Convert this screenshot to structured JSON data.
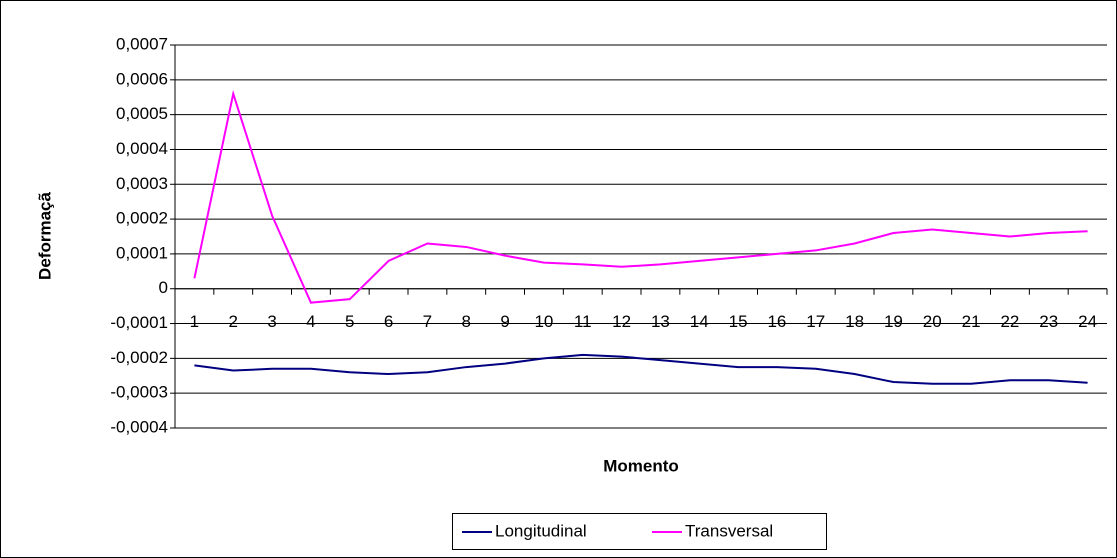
{
  "chart_data": {
    "type": "line",
    "x_label": "Momento",
    "y_label": "Deformaçã",
    "categories": [
      "1",
      "2",
      "3",
      "4",
      "5",
      "6",
      "7",
      "8",
      "9",
      "10",
      "11",
      "12",
      "13",
      "14",
      "15",
      "16",
      "17",
      "18",
      "19",
      "20",
      "21",
      "22",
      "23",
      "24"
    ],
    "series": [
      {
        "name": "Longitudinal",
        "color": "#000080",
        "values": [
          -0.00022,
          -0.000235,
          -0.00023,
          -0.00023,
          -0.00024,
          -0.000245,
          -0.00024,
          -0.000225,
          -0.000215,
          -0.0002,
          -0.00019,
          -0.000195,
          -0.000205,
          -0.000215,
          -0.000225,
          -0.000225,
          -0.00023,
          -0.000245,
          -0.000268,
          -0.000273,
          -0.000273,
          -0.000263,
          -0.000263,
          -0.00027
        ]
      },
      {
        "name": "Transversal",
        "color": "#ff00ff",
        "values": [
          3e-05,
          0.00056,
          0.00021,
          -4e-05,
          -3e-05,
          8e-05,
          0.00013,
          0.00012,
          9.5e-05,
          7.5e-05,
          7e-05,
          6.3e-05,
          7e-05,
          8e-05,
          9e-05,
          0.0001,
          0.00011,
          0.00013,
          0.00016,
          0.00017,
          0.00016,
          0.00015,
          0.00016,
          0.000165
        ]
      }
    ],
    "ylim": [
      -0.0004,
      0.0007
    ],
    "yticks": [
      {
        "value": -0.0004,
        "label": "-0,0004"
      },
      {
        "value": -0.0003,
        "label": "-0,0003"
      },
      {
        "value": -0.0002,
        "label": "-0,0002"
      },
      {
        "value": -0.0001,
        "label": "-0,0001"
      },
      0,
      {
        "value": 0.0001,
        "label": "0,0001"
      },
      {
        "value": 0.0002,
        "label": "0,0002"
      },
      {
        "value": 0.0003,
        "label": "0,0003"
      },
      {
        "value": 0.0004,
        "label": "0,0004"
      },
      {
        "value": 0.0005,
        "label": "0,0005"
      },
      {
        "value": 0.0006,
        "label": "0,0006"
      },
      {
        "value": 0.0007,
        "label": "0,0007"
      }
    ],
    "grid": true,
    "legend": "bottom"
  }
}
